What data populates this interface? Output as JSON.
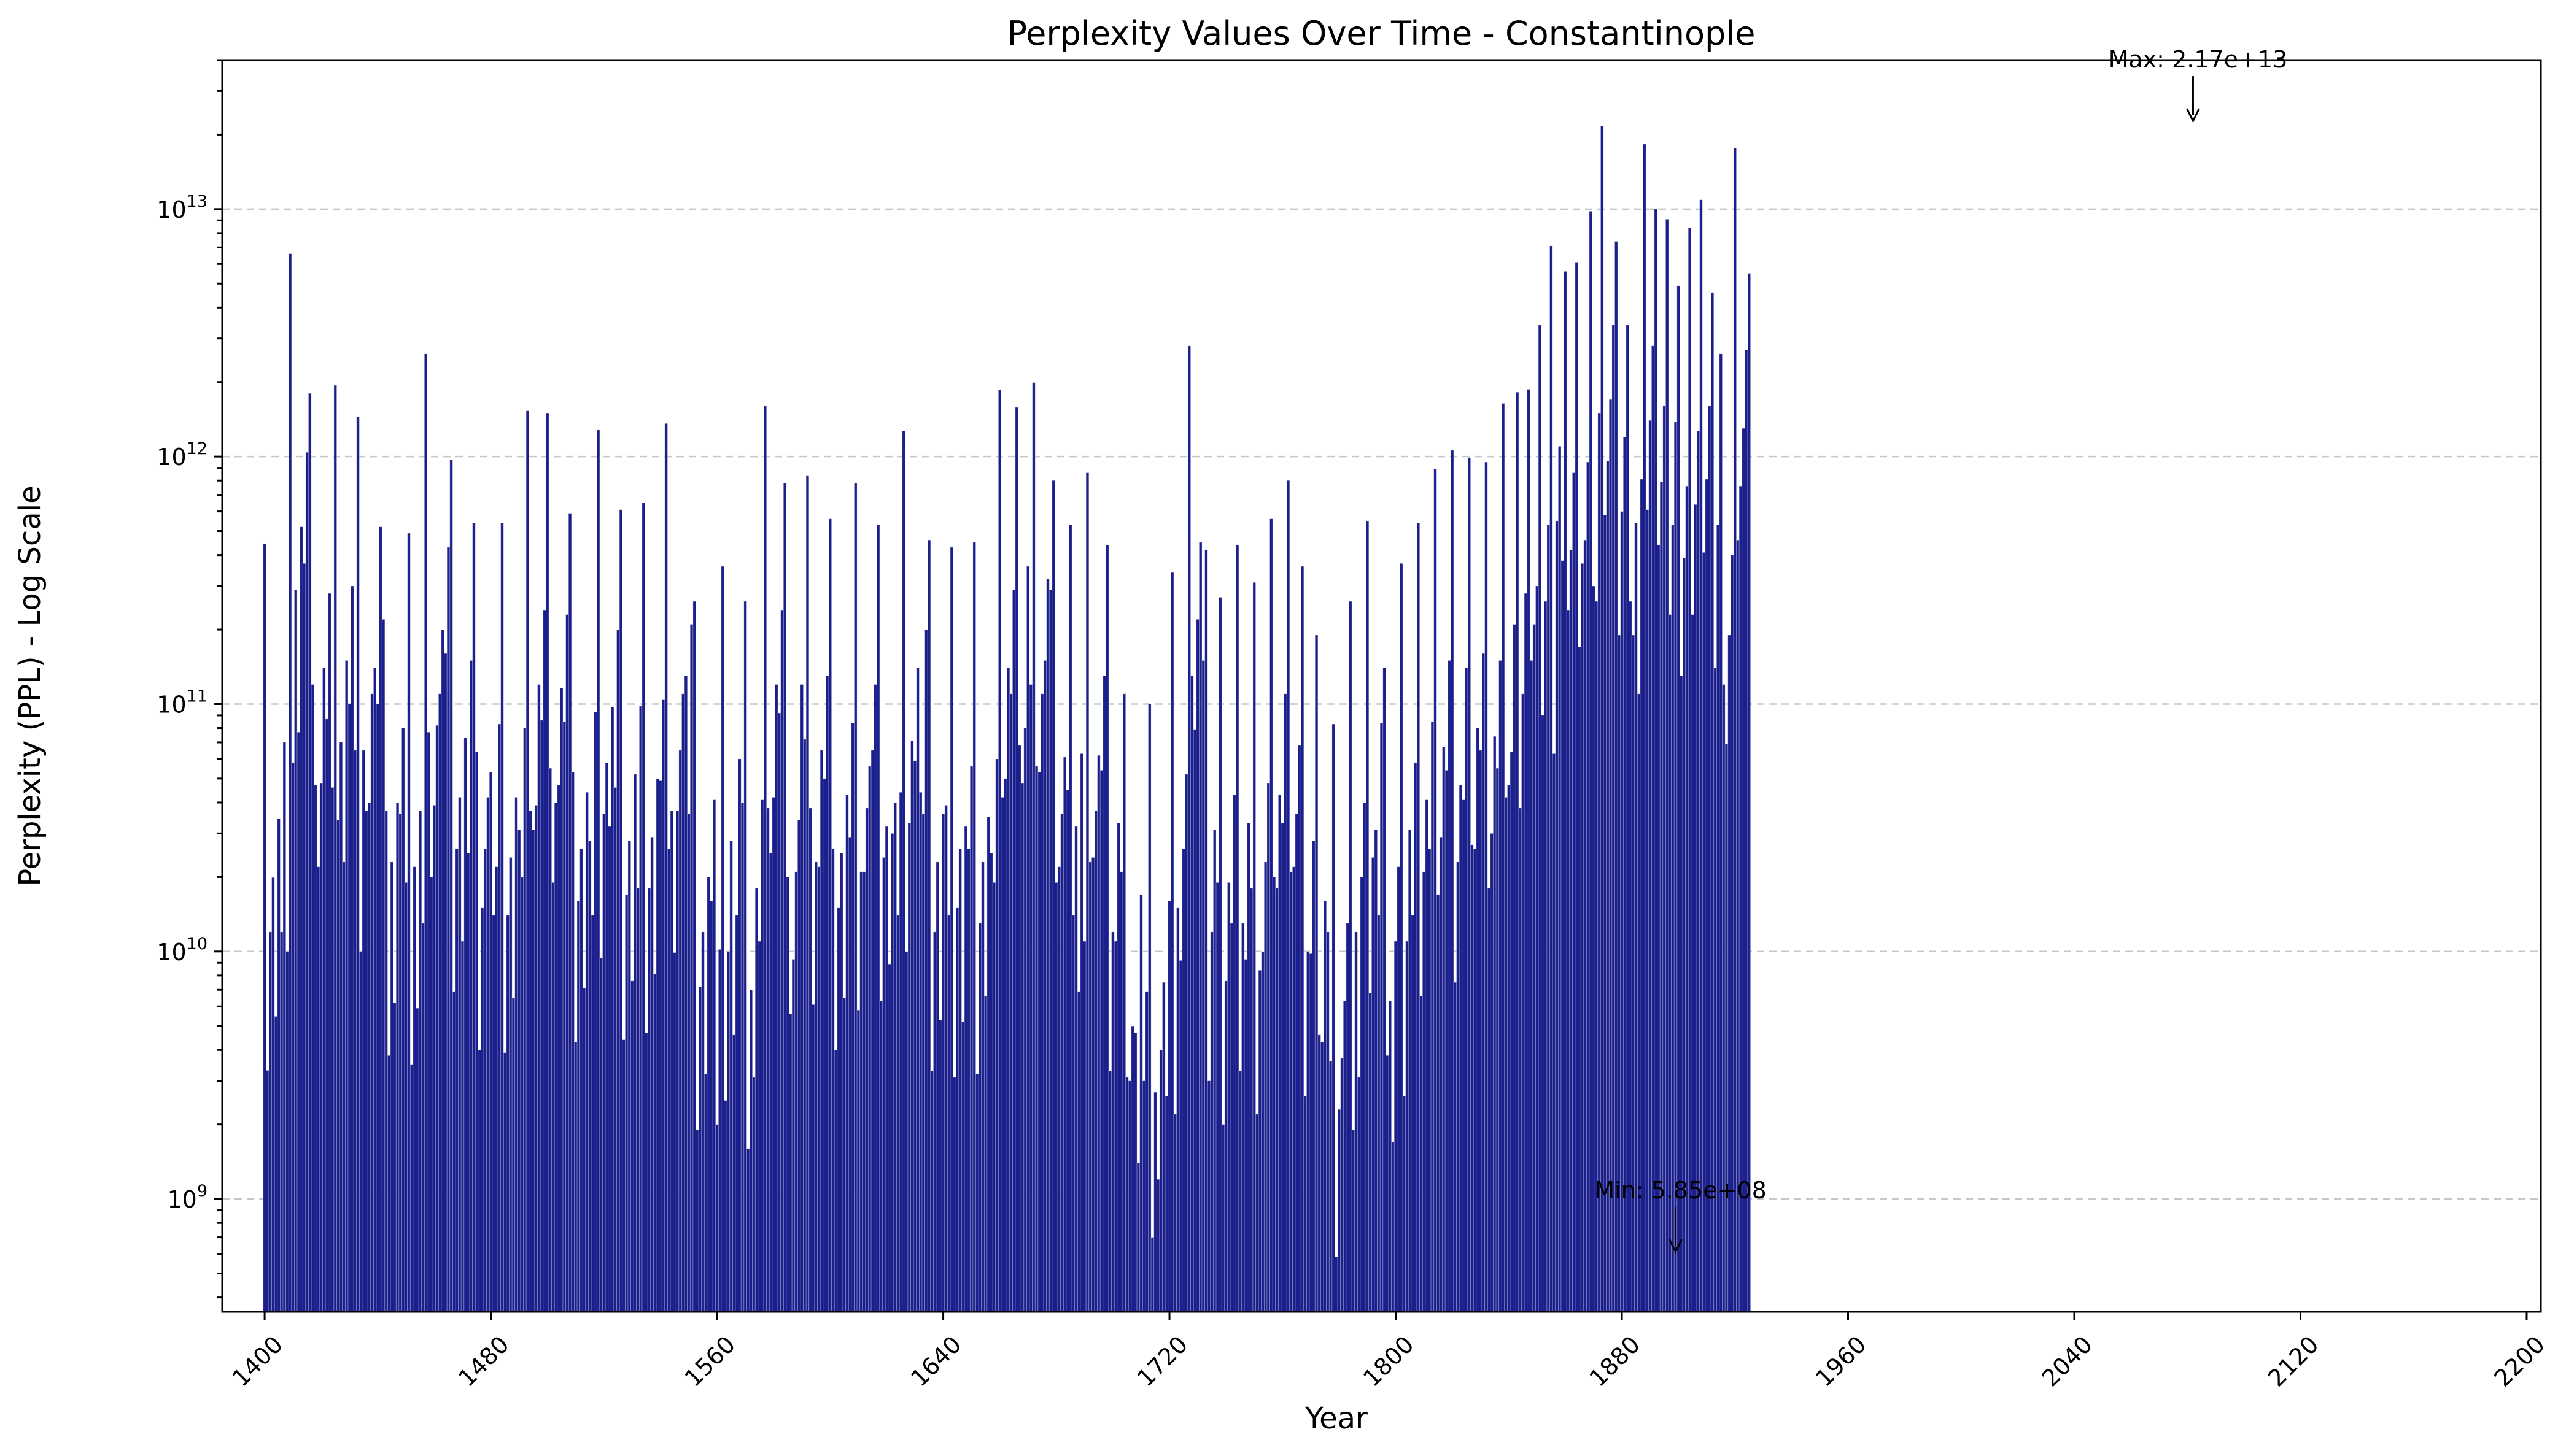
{
  "chart_data": {
    "type": "bar",
    "title": "Perplexity Values Over Time - Constantinople",
    "xlabel": "Year",
    "ylabel": "Perplexity (PPL) - Log Scale",
    "yscale": "log",
    "xlim": [
      1385,
      2205
    ],
    "ylim": [
      350000000,
      40000000000000
    ],
    "grid": "y-dashed",
    "bar_color": "#1a1f8c",
    "x_ticks": [
      1400,
      1480,
      1560,
      1640,
      1720,
      1800,
      1880,
      1960,
      2040,
      2120,
      2200
    ],
    "x_tick_labels": [
      "1400",
      "1480",
      "1560",
      "1640",
      "1720",
      "1800",
      "1880",
      "1960",
      "2040",
      "2120",
      "2200"
    ],
    "y_ticks": [
      1000000000,
      10000000000,
      100000000000,
      1000000000000,
      10000000000000
    ],
    "y_tick_labels": [
      {
        "base": "10",
        "exp": "9"
      },
      {
        "base": "10",
        "exp": "10"
      },
      {
        "base": "10",
        "exp": "11"
      },
      {
        "base": "10",
        "exp": "12"
      },
      {
        "base": "10",
        "exp": "13"
      }
    ],
    "series": [
      {
        "x_start": 1400,
        "x_step": 1,
        "values": [
          445000000000.0,
          3310000000.0,
          12000000000.0,
          19900000000.0,
          5470000000.0,
          34500000000.0,
          12000000000.0,
          70000000000.0,
          10000000000.0,
          6600000000000.0,
          58000000000.0,
          290000000000.0,
          77000000000.0,
          520000000000.0,
          370000000000.0,
          1040000000000.0,
          1800000000000.0,
          120000000000.0,
          47000000000.0,
          22000000000.0,
          48000000000.0,
          140000000000.0,
          87000000000.0,
          280000000000.0,
          46000000000.0,
          1940000000000.0,
          34000000000.0,
          70000000000.0,
          23000000000.0,
          150000000000.0,
          100000000000.0,
          300000000000.0,
          65000000000.0,
          1450000000000.0,
          10000000000.0,
          65000000000.0,
          37000000000.0,
          40000000000.0,
          110000000000.0,
          140000000000.0,
          100000000000.0,
          520000000000.0,
          220000000000.0,
          37000000000.0,
          3800000000.0,
          23000000000.0,
          6200000000.0,
          40000000000.0,
          36000000000.0,
          80000000000.0,
          19000000000.0,
          490000000000.0,
          3500000000.0,
          22000000000.0,
          5900000000.0,
          37000000000.0,
          13000000000.0,
          2600000000000.0,
          77000000000.0,
          20000000000.0,
          39000000000.0,
          82000000000.0,
          110000000000.0,
          200000000000.0,
          160000000000.0,
          430000000000.0,
          970000000000.0,
          6900000000.0,
          26000000000.0,
          42000000000.0,
          11000000000.0,
          73000000000.0,
          25000000000.0,
          150000000000.0,
          540000000000.0,
          64000000000.0,
          4000000000.0,
          15000000000.0,
          26000000000.0,
          42000000000.0,
          53000000000.0,
          14000000000.0,
          22000000000.0,
          83000000000.0,
          540000000000.0,
          3900000000.0,
          14000000000.0,
          24000000000.0,
          6500000000.0,
          42000000000.0,
          31000000000.0,
          20000000000.0,
          80000000000.0,
          1530000000000.0,
          37000000000.0,
          31000000000.0,
          39000000000.0,
          120000000000.0,
          86000000000.0,
          240000000000.0,
          1500000000000.0,
          55000000000.0,
          19000000000.0,
          40000000000.0,
          47000000000.0,
          116000000000.0,
          85000000000.0,
          230000000000.0,
          590000000000.0,
          53000000000.0,
          4300000000.0,
          16000000000.0,
          26000000000.0,
          7100000000.0,
          44000000000.0,
          28000000000.0,
          14000000000.0,
          93000000000.0,
          1280000000000.0,
          9400000000.0,
          36000000000.0,
          58000000000.0,
          32000000000.0,
          97000000000.0,
          46000000000.0,
          200000000000.0,
          610000000000.0,
          4400000000.0,
          17000000000.0,
          28000000000.0,
          7600000000.0,
          52000000000.0,
          18000000000.0,
          98000000000.0,
          650000000000.0,
          4700000000.0,
          18000000000.0,
          29000000000.0,
          8100000000.0,
          50000000000.0,
          49000000000.0,
          104000000000.0,
          1360000000000.0,
          26000000000.0,
          37000000000.0,
          9900000000.0,
          37000000000.0,
          65000000000.0,
          110000000000.0,
          130000000000.0,
          36000000000.0,
          210000000000.0,
          260000000000.0,
          1900000000.0,
          7200000000.0,
          12000000000.0,
          3200000000.0,
          20000000000.0,
          16000000000.0,
          41000000000.0,
          2000000000.0,
          10200000000.0,
          360000000000.0,
          2500000000.0,
          10000000000.0,
          28000000000.0,
          4600000000.0,
          14000000000.0,
          60000000000.0,
          40000000000.0,
          260000000000.0,
          1600000000.0,
          7000000000.0,
          3100000000.0,
          18000000000.0,
          11000000000.0,
          41000000000.0,
          1600000000000.0,
          38000000000.0,
          25000000000.0,
          42000000000.0,
          120000000000.0,
          92000000000.0,
          240000000000.0,
          780000000000.0,
          20000000000.0,
          5600000000.0,
          9300000000.0,
          21000000000.0,
          34000000000.0,
          120000000000.0,
          72000000000.0,
          840000000000.0,
          38000000000.0,
          6100000000.0,
          23000000000.0,
          22000000000.0,
          65000000000.0,
          50000000000.0,
          130000000000.0,
          560000000000.0,
          26000000000.0,
          4000000000.0,
          15000000000.0,
          25000000000.0,
          6500000000.0,
          43000000000.0,
          29000000000.0,
          84000000000.0,
          780000000000.0,
          5800000000.0,
          21000000000.0,
          21000000000.0,
          38000000000.0,
          56000000000.0,
          65000000000.0,
          120000000000.0,
          530000000000.0,
          6300000000.0,
          24000000000.0,
          32000000000.0,
          8900000000.0,
          30000000000.0,
          40000000000.0,
          14000000000.0,
          44000000000.0,
          1270000000000.0,
          10000000000.0,
          33000000000.0,
          71000000000.0,
          59000000000.0,
          140000000000.0,
          44000000000.0,
          36000000000.0,
          200000000000.0,
          460000000000.0,
          3300000000.0,
          12000000000.0,
          23000000000.0,
          5300000000.0,
          36000000000.0,
          39000000000.0,
          14000000000.0,
          430000000000.0,
          3100000000.0,
          15000000000.0,
          26000000000.0,
          5200000000.0,
          32000000000.0,
          26000000000.0,
          56000000000.0,
          450000000000.0,
          3200000000.0,
          13000000000.0,
          23000000000.0,
          6600000000.0,
          35000000000.0,
          25000000000.0,
          19000000000.0,
          60000000000.0,
          1860000000000.0,
          42000000000.0,
          50000000000.0,
          140000000000.0,
          110000000000.0,
          290000000000.0,
          1580000000000.0,
          68000000000.0,
          48000000000.0,
          80000000000.0,
          360000000000.0,
          120000000000.0,
          1990000000000.0,
          56000000000.0,
          53000000000.0,
          110000000000.0,
          150000000000.0,
          320000000000.0,
          290000000000.0,
          800000000000.0,
          19000000000.0,
          22000000000.0,
          36000000000.0,
          61000000000.0,
          45000000000.0,
          530000000000.0,
          14000000000.0,
          32000000000.0,
          6900000000.0,
          63000000000.0,
          11000000000.0,
          860000000000.0,
          23000000000.0,
          24000000000.0,
          37000000000.0,
          62000000000.0,
          54000000000.0,
          130000000000.0,
          440000000000.0,
          3300000000.0,
          12000000000.0,
          11000000000.0,
          33000000000.0,
          21000000000.0,
          110000000000.0,
          3100000000.0,
          3000000000.0,
          5000000000.0,
          4700000000.0,
          1400000000.0,
          17000000000.0,
          3000000000.0,
          6900000000.0,
          100000000000.0,
          700000000.0,
          2700000000.0,
          1200000000.0,
          4000000000.0,
          7500000000.0,
          2600000000.0,
          16000000000.0,
          340000000000.0,
          2200000000.0,
          15000000000.0,
          9200000000.0,
          26000000000.0,
          52000000000.0,
          2800000000000.0,
          130000000000.0,
          79000000000.0,
          220000000000.0,
          450000000000.0,
          150000000000.0,
          420000000000.0,
          3000000000.0,
          12000000000.0,
          31000000000.0,
          19000000000.0,
          270000000000.0,
          2000000000.0,
          7600000000.0,
          19000000000.0,
          13000000000.0,
          43000000000.0,
          440000000000.0,
          3300000000.0,
          13000000000.0,
          9300000000.0,
          33000000000.0,
          18000000000.0,
          310000000000.0,
          2200000000.0,
          8400000000.0,
          10000000000.0,
          23000000000.0,
          48000000000.0,
          560000000000.0,
          20000000000.0,
          18000000000.0,
          43000000000.0,
          33000000000.0,
          110000000000.0,
          800000000000.0,
          21000000000.0,
          22000000000.0,
          36000000000.0,
          68000000000.0,
          360000000000.0,
          2600000000.0,
          10000000000.0,
          9800000000.0,
          28000000000.0,
          190000000000.0,
          4600000000.0,
          4300000000.0,
          16000000000.0,
          12000000000.0,
          3600000000.0,
          83000000000.0,
          585000000.0,
          2300000000.0,
          3700000000.0,
          6300000000.0,
          13000000000.0,
          260000000000.0,
          1900000000.0,
          12000000000.0,
          3100000000.0,
          20000000000.0,
          40000000000.0,
          550000000000.0,
          6800000000.0,
          24000000000.0,
          31000000000.0,
          14000000000.0,
          84000000000.0,
          140000000000.0,
          3800000000.0,
          6300000000.0,
          1700000000.0,
          11000000000.0,
          22000000000.0,
          370000000000.0,
          2600000000.0,
          11000000000.0,
          31000000000.0,
          14000000000.0,
          58000000000.0,
          540000000000.0,
          6600000000.0,
          21000000000.0,
          41000000000.0,
          26000000000.0,
          85000000000.0,
          890000000000.0,
          17000000000.0,
          29000000000.0,
          67000000000.0,
          54000000000.0,
          150000000000.0,
          1060000000000.0,
          7500000000.0,
          23000000000.0,
          47000000000.0,
          41000000000.0,
          140000000000.0,
          990000000000.0,
          27000000000.0,
          26000000000.0,
          80000000000.0,
          65000000000.0,
          160000000000.0,
          950000000000.0,
          18000000000.0,
          30000000000.0,
          74000000000.0,
          55000000000.0,
          150000000000.0,
          1640000000000.0,
          42000000000.0,
          47000000000.0,
          64000000000.0,
          210000000000.0,
          1820000000000.0,
          38000000000.0,
          110000000000.0,
          280000000000.0,
          1870000000000.0,
          150000000000.0,
          210000000000.0,
          300000000000.0,
          3400000000000.0,
          90000000000.0,
          260000000000.0,
          530000000000.0,
          7100000000000.0,
          63000000000.0,
          550000000000.0,
          1100000000000.0,
          380000000000.0,
          5600000000000.0,
          240000000000.0,
          420000000000.0,
          860000000000.0,
          6100000000000.0,
          170000000000.0,
          370000000000.0,
          460000000000.0,
          950000000000.0,
          9800000000000.0,
          300000000000.0,
          260000000000.0,
          1500000000000.0,
          21700000000000.0,
          580000000000.0,
          960000000000.0,
          1700000000000.0,
          3400000000000.0,
          7400000000000.0,
          190000000000.0,
          600000000000.0,
          1200000000000.0,
          3400000000000.0,
          260000000000.0,
          190000000000.0,
          540000000000.0,
          110000000000.0,
          810000000000.0,
          18300000000000.0,
          610000000000.0,
          1400000000000.0,
          2800000000000.0,
          10000000000000.0,
          440000000000.0,
          790000000000.0,
          1600000000000.0,
          9100000000000.0,
          230000000000.0,
          530000000000.0,
          1380000000000.0,
          4900000000000.0,
          130000000000.0,
          390000000000.0,
          760000000000.0,
          8400000000000.0,
          230000000000.0,
          640000000000.0,
          1270000000000.0,
          10900000000000.0,
          410000000000.0,
          810000000000.0,
          1600000000000.0,
          4600000000000.0,
          140000000000.0,
          530000000000.0,
          2600000000000.0,
          120000000000.0,
          69000000000.0,
          190000000000.0,
          400000000000.0,
          17600000000000.0,
          460000000000.0,
          760000000000.0,
          1300000000000.0,
          2700000000000.0,
          5500000000000.0
        ]
      }
    ],
    "annotations": [
      {
        "label": "Max: 2.17e+13",
        "x": 2082,
        "y": 21700000000000.0
      },
      {
        "label": "Min: 5.85e+08",
        "x": 1899,
        "y": 585000000.0
      }
    ]
  }
}
